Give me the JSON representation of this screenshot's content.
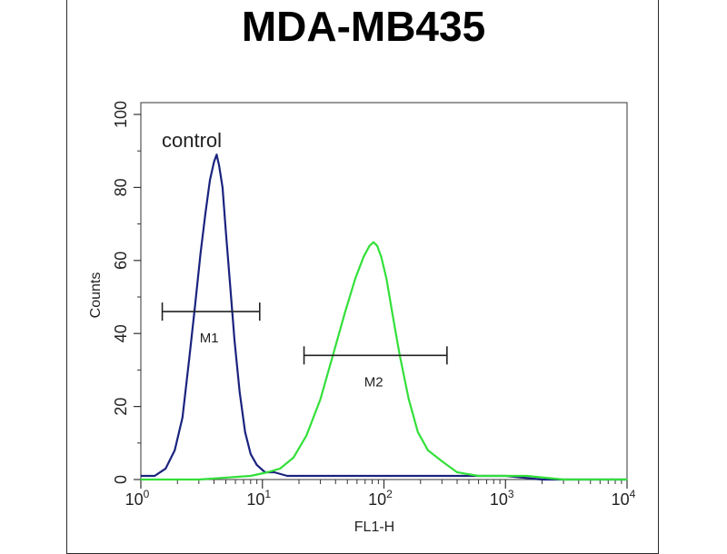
{
  "chart_data": {
    "type": "line",
    "title": "MDA-MB435",
    "xlabel": "FL1-H",
    "ylabel": "Counts",
    "xscale": "log",
    "xlim": [
      1,
      10000
    ],
    "ylim": [
      0,
      100
    ],
    "xticks": [
      {
        "value": 1,
        "base": "10",
        "exp": "0"
      },
      {
        "value": 10,
        "base": "10",
        "exp": "1"
      },
      {
        "value": 100,
        "base": "10",
        "exp": "2"
      },
      {
        "value": 1000,
        "base": "10",
        "exp": "3"
      },
      {
        "value": 10000,
        "base": "10",
        "exp": "4"
      }
    ],
    "yticks": [
      "0",
      "20",
      "40",
      "60",
      "80",
      "100"
    ],
    "annotation": "control",
    "series": [
      {
        "color": "#1a237e",
        "x": [
          1.0,
          1.3,
          1.6,
          1.9,
          2.2,
          2.5,
          2.8,
          3.1,
          3.4,
          3.7,
          4.0,
          4.2,
          4.4,
          4.7,
          5.0,
          5.4,
          5.9,
          6.5,
          7.2,
          8.0,
          9.0,
          10.5,
          12.5,
          16,
          22,
          35,
          60,
          100,
          200,
          500,
          1000,
          2000,
          5000,
          10000
        ],
        "y": [
          1,
          1,
          3,
          8,
          17,
          33,
          48,
          62,
          73,
          82,
          87,
          89,
          86,
          80,
          68,
          54,
          38,
          24,
          13,
          7,
          4,
          2,
          2,
          1,
          1,
          1,
          1,
          1,
          1,
          1,
          1,
          0,
          0,
          0
        ]
      },
      {
        "color": "#33e03a",
        "x": [
          1.0,
          3,
          8,
          11,
          14,
          18,
          23,
          30,
          38,
          48,
          58,
          68,
          76,
          82,
          88,
          95,
          105,
          118,
          135,
          160,
          190,
          230,
          300,
          400,
          600,
          900,
          1500,
          3000,
          10000
        ],
        "y": [
          0,
          0,
          1,
          2,
          3,
          6,
          12,
          22,
          34,
          46,
          55,
          61,
          64,
          65,
          64,
          61,
          55,
          45,
          34,
          22,
          13,
          8,
          5,
          2,
          1,
          1,
          1,
          0,
          0
        ]
      }
    ],
    "markers": [
      {
        "label": "M1",
        "x_start": 1.5,
        "x_end": 9.5,
        "y": 46
      },
      {
        "label": "M2",
        "x_start": 22,
        "x_end": 330,
        "y": 34
      }
    ]
  }
}
